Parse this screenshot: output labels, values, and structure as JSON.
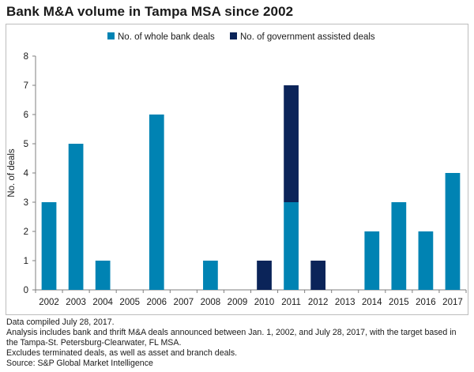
{
  "title": "Bank M&A volume in Tampa MSA since 2002",
  "colors": {
    "whole_bank": "#0083B3",
    "government_assisted": "#0B2459",
    "axis": "#7f7f7f"
  },
  "chart_data": {
    "type": "bar",
    "stacked": true,
    "categories": [
      "2002",
      "2003",
      "2004",
      "2005",
      "2006",
      "2007",
      "2008",
      "2009",
      "2010",
      "2011",
      "2012",
      "2013",
      "2014",
      "2015",
      "2016",
      "2017"
    ],
    "series": [
      {
        "name": "No. of whole bank deals",
        "values": [
          3,
          5,
          1,
          0,
          6,
          0,
          1,
          0,
          0,
          3,
          0,
          0,
          2,
          3,
          2,
          4
        ]
      },
      {
        "name": "No. of government assisted deals",
        "values": [
          0,
          0,
          0,
          0,
          0,
          0,
          0,
          0,
          1,
          4,
          1,
          0,
          0,
          0,
          0,
          0
        ]
      }
    ],
    "ylabel": "No. of deals",
    "xlabel": "",
    "ylim": [
      0,
      8
    ],
    "yticks": [
      0,
      1,
      2,
      3,
      4,
      5,
      6,
      7,
      8
    ],
    "legend_position": "top",
    "grid": false
  },
  "notes": [
    "Data compiled July 28, 2017.",
    "Analysis includes bank and thrift M&A deals announced between Jan. 1, 2002, and July 28, 2017, with the target based in",
    "the Tampa-St. Petersburg-Clearwater, FL MSA.",
    "Excludes terminated deals, as well as asset and branch deals.",
    "Source: S&P Global Market Intelligence"
  ]
}
